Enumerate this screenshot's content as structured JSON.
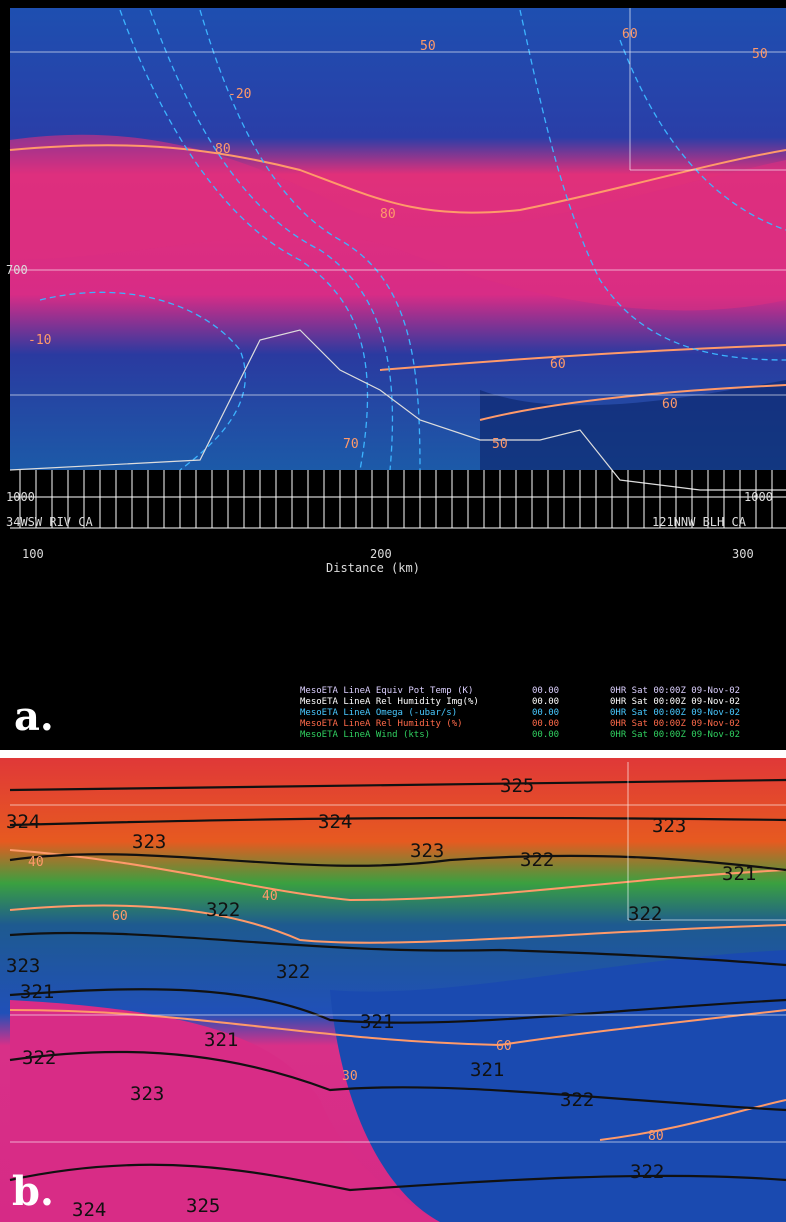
{
  "panel_a": {
    "label": "a.",
    "pressure_labels": [
      "700",
      "1000"
    ],
    "pressure_label_right": "1000",
    "location_left": "34WSW RIV CA",
    "location_right": "121NNW BLH CA",
    "x_ticks": [
      "100",
      "200",
      "300"
    ],
    "x_title": "Distance (km)",
    "legend": [
      {
        "text": "MesoETA LineA Equiv Pot Temp (K)",
        "value": "00.00",
        "time": "0HR Sat 00:00Z 09-Nov-02"
      },
      {
        "text": "MesoETA LineA Rel Humidity Img(%)",
        "value": "00.00",
        "time": "0HR Sat 00:00Z 09-Nov-02"
      },
      {
        "text": "MesoETA LineA Omega (-ubar/s)",
        "value": "00.00",
        "time": "0HR Sat 00:00Z 09-Nov-02"
      },
      {
        "text": "MesoETA LineA Rel Humidity (%)",
        "value": "00.00",
        "time": "0HR Sat 00:00Z 09-Nov-02"
      },
      {
        "text": "MesoETA LineA Wind (kts)",
        "value": "00.00",
        "time": "0HR Sat 00:00Z 09-Nov-02"
      }
    ],
    "contour_labels": [
      "-20",
      "80",
      "80",
      "-10",
      "60",
      "60",
      "70",
      "50",
      "50",
      "60",
      "50"
    ]
  },
  "panel_b": {
    "label": "b.",
    "theta_labels": [
      "325",
      "324",
      "324",
      "323",
      "323",
      "322",
      "323",
      "321",
      "322",
      "322",
      "323",
      "322",
      "321",
      "321",
      "321",
      "322",
      "321",
      "323",
      "322",
      "322",
      "324",
      "325"
    ],
    "rh_labels": [
      "80",
      "60",
      "40",
      "60",
      "30",
      "40"
    ]
  }
}
